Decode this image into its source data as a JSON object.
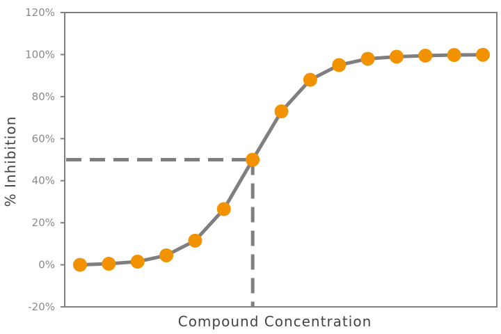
{
  "chart_data": {
    "type": "line",
    "title": "",
    "xlabel": "Compound Concentration",
    "ylabel": "% Inhibition",
    "ylim": [
      -20,
      120
    ],
    "ytick_step": 20,
    "ytick_suffix": "%",
    "grid": false,
    "x_ticks_shown": false,
    "series": [
      {
        "values": [
          0,
          0.5,
          1.5,
          4.5,
          11.5,
          26.5,
          50,
          73,
          88,
          95,
          98,
          99,
          99.5,
          99.8,
          99.9
        ],
        "line_color": "#7f7f7f",
        "marker_color": "#f39200"
      }
    ],
    "reference_lines": {
      "ic50_y": 50,
      "ic50_point_index": 6,
      "color": "#7f7f7f",
      "style": "dashed"
    }
  }
}
